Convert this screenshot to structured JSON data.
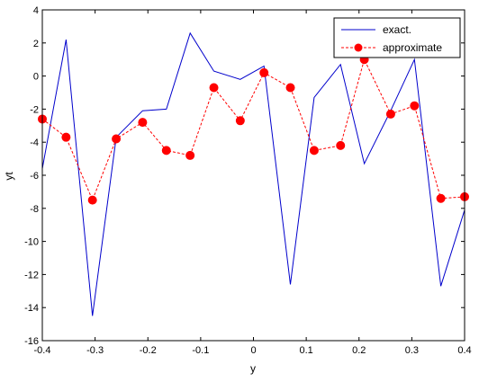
{
  "chart_data": {
    "type": "line",
    "title": "",
    "xlabel": "y",
    "ylabel": "yt",
    "xlim": [
      -0.4,
      0.4
    ],
    "ylim": [
      -16,
      4
    ],
    "xticks": [
      -0.4,
      -0.3,
      -0.2,
      -0.1,
      0,
      0.1,
      0.2,
      0.3,
      0.4
    ],
    "xtick_labels": [
      "-0.4",
      "-0.3",
      "-0.2",
      "-0.1",
      "0",
      "0.1",
      "0.2",
      "0.3",
      "0.4"
    ],
    "yticks": [
      4,
      2,
      0,
      -2,
      -4,
      -6,
      -8,
      -10,
      -12,
      -14,
      -16
    ],
    "ytick_labels": [
      "4",
      "2",
      "0",
      "-2",
      "-4",
      "-6",
      "-8",
      "-10",
      "-12",
      "-14",
      "-16"
    ],
    "grid": false,
    "legend_position": "top-right",
    "x": [
      -0.4,
      -0.3579,
      -0.3158,
      -0.2737,
      -0.2316,
      -0.1895,
      -0.1474,
      -0.1053,
      -0.0632,
      -0.0211,
      0.0211,
      0.0632,
      0.1053,
      0.1474,
      0.1895,
      0.2316,
      0.2737,
      0.3158,
      0.3579,
      0.4
    ],
    "series": [
      {
        "name": "exact.",
        "style": "solid",
        "marker": "none",
        "color": "#0000cc",
        "x": [
          -0.4,
          -0.355,
          -0.305,
          -0.26,
          -0.21,
          -0.165,
          -0.12,
          -0.075,
          -0.025,
          0.02,
          0.07,
          0.115,
          0.165,
          0.21,
          0.26,
          0.305,
          0.355,
          0.4
        ],
        "values": [
          -5.6,
          2.2,
          -14.5,
          -3.7,
          -2.1,
          -2.0,
          2.6,
          0.3,
          -0.2,
          0.6,
          -12.6,
          -1.3,
          0.7,
          -5.3,
          -2.1,
          1.0,
          -12.7,
          -8.1
        ]
      },
      {
        "name": "approximate",
        "style": "dashed",
        "marker": "circle",
        "color": "#ff0000",
        "x": [
          -0.4,
          -0.355,
          -0.305,
          -0.26,
          -0.21,
          -0.165,
          -0.12,
          -0.075,
          -0.025,
          0.02,
          0.07,
          0.115,
          0.165,
          0.21,
          0.26,
          0.305,
          0.355,
          0.4
        ],
        "values": [
          -2.6,
          -3.7,
          -7.5,
          -3.8,
          -2.8,
          -4.5,
          -4.8,
          -0.7,
          -2.7,
          0.2,
          -0.7,
          -4.5,
          -4.2,
          1.0,
          -2.3,
          -1.8,
          -7.4,
          -7.3
        ]
      }
    ]
  }
}
